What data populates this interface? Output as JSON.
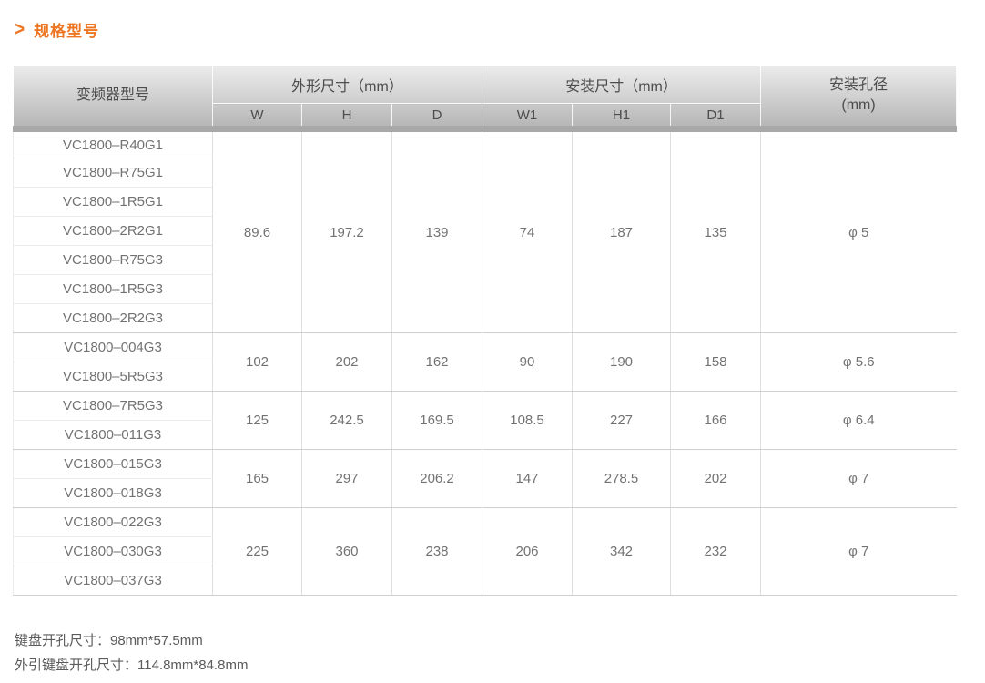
{
  "page": {
    "title": "规格型号",
    "chevron": ">",
    "accent_color": "#ee7623"
  },
  "table": {
    "header": {
      "model": "变频器型号",
      "outline": "外形尺寸（mm）",
      "install": "安装尺寸（mm）",
      "hole_line1": "安装孔径",
      "hole_line2": "(mm)",
      "w": "W",
      "h": "H",
      "d": "D",
      "w1": "W1",
      "h1": "H1",
      "d1": "D1"
    },
    "groups": [
      {
        "models": [
          "VC1800–R40G1",
          "VC1800–R75G1",
          "VC1800–1R5G1",
          "VC1800–2R2G1",
          "VC1800–R75G3",
          "VC1800–1R5G3",
          "VC1800–2R2G3"
        ],
        "w": "89.6",
        "h": "197.2",
        "d": "139",
        "w1": "74",
        "h1": "187",
        "d1": "135",
        "hole": "φ 5"
      },
      {
        "models": [
          "VC1800–004G3",
          "VC1800–5R5G3"
        ],
        "w": "102",
        "h": "202",
        "d": "162",
        "w1": "90",
        "h1": "190",
        "d1": "158",
        "hole": "φ 5.6"
      },
      {
        "models": [
          "VC1800–7R5G3",
          "VC1800–011G3"
        ],
        "w": "125",
        "h": "242.5",
        "d": "169.5",
        "w1": "108.5",
        "h1": "227",
        "d1": "166",
        "hole": "φ 6.4"
      },
      {
        "models": [
          "VC1800–015G3",
          "VC1800–018G3"
        ],
        "w": "165",
        "h": "297",
        "d": "206.2",
        "w1": "147",
        "h1": "278.5",
        "d1": "202",
        "hole": "φ 7"
      },
      {
        "models": [
          "VC1800–022G3",
          "VC1800–030G3",
          "VC1800–037G3"
        ],
        "w": "225",
        "h": "360",
        "d": "238",
        "w1": "206",
        "h1": "342",
        "d1": "232",
        "hole": "φ 7"
      }
    ]
  },
  "notes": {
    "line1": "键盘开孔尺寸：98mm*57.5mm",
    "line2": "外引键盘开孔尺寸：114.8mm*84.8mm"
  }
}
